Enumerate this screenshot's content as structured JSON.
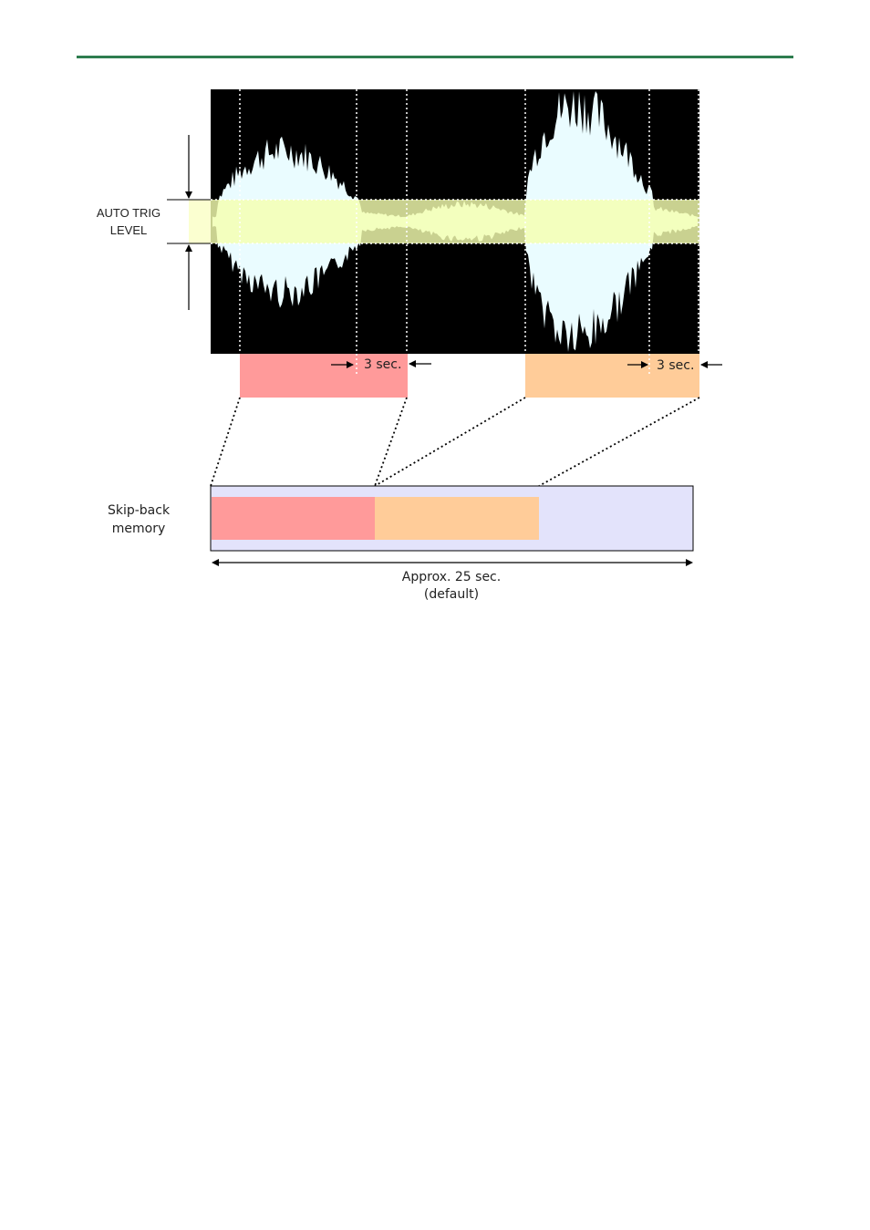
{
  "labels": {
    "auto_trig_line1": "AUTO TRIG",
    "auto_trig_line2": "LEVEL",
    "interval_a": "3 sec.",
    "interval_b": "3 sec.",
    "skip_back_line1": "Skip-back",
    "skip_back_line2": "memory",
    "duration_line1": "Approx. 25 sec.",
    "duration_line2": "(default)"
  },
  "colors": {
    "header_rule": "#2e7d4f",
    "waveform_bg": "#000000",
    "waveform": "#eafcff",
    "trigger_band": "#f5ffb0",
    "segment_a": "#ff9a9a",
    "segment_b": "#ffcc99",
    "memory_bg": "#e3e3fb"
  }
}
